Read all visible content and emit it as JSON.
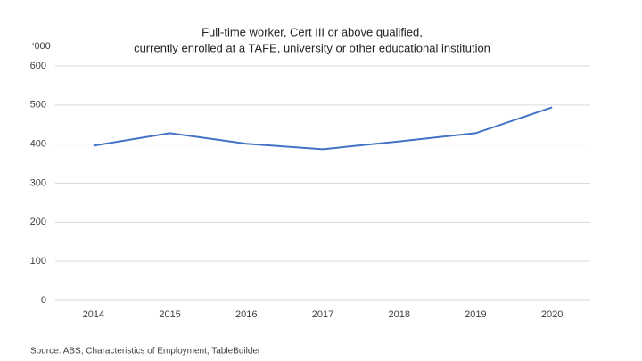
{
  "chart_data": {
    "type": "line",
    "title": [
      "Full-time worker, Cert III or above qualified,",
      "currently enrolled at a TAFE, university or other educational institution"
    ],
    "y_label": "‘000",
    "source": "Source: ABS, Characteristics of Employment, TableBuilder",
    "categories": [
      "2014",
      "2015",
      "2016",
      "2017",
      "2018",
      "2019",
      "2020"
    ],
    "series": [
      {
        "color": "#4472c4",
        "values": [
          396,
          428,
          401,
          387,
          407,
          428,
          494
        ]
      }
    ],
    "ylim": [
      0,
      600
    ],
    "yticks": [
      0,
      100,
      200,
      300,
      400,
      500,
      600
    ],
    "grid": true
  }
}
